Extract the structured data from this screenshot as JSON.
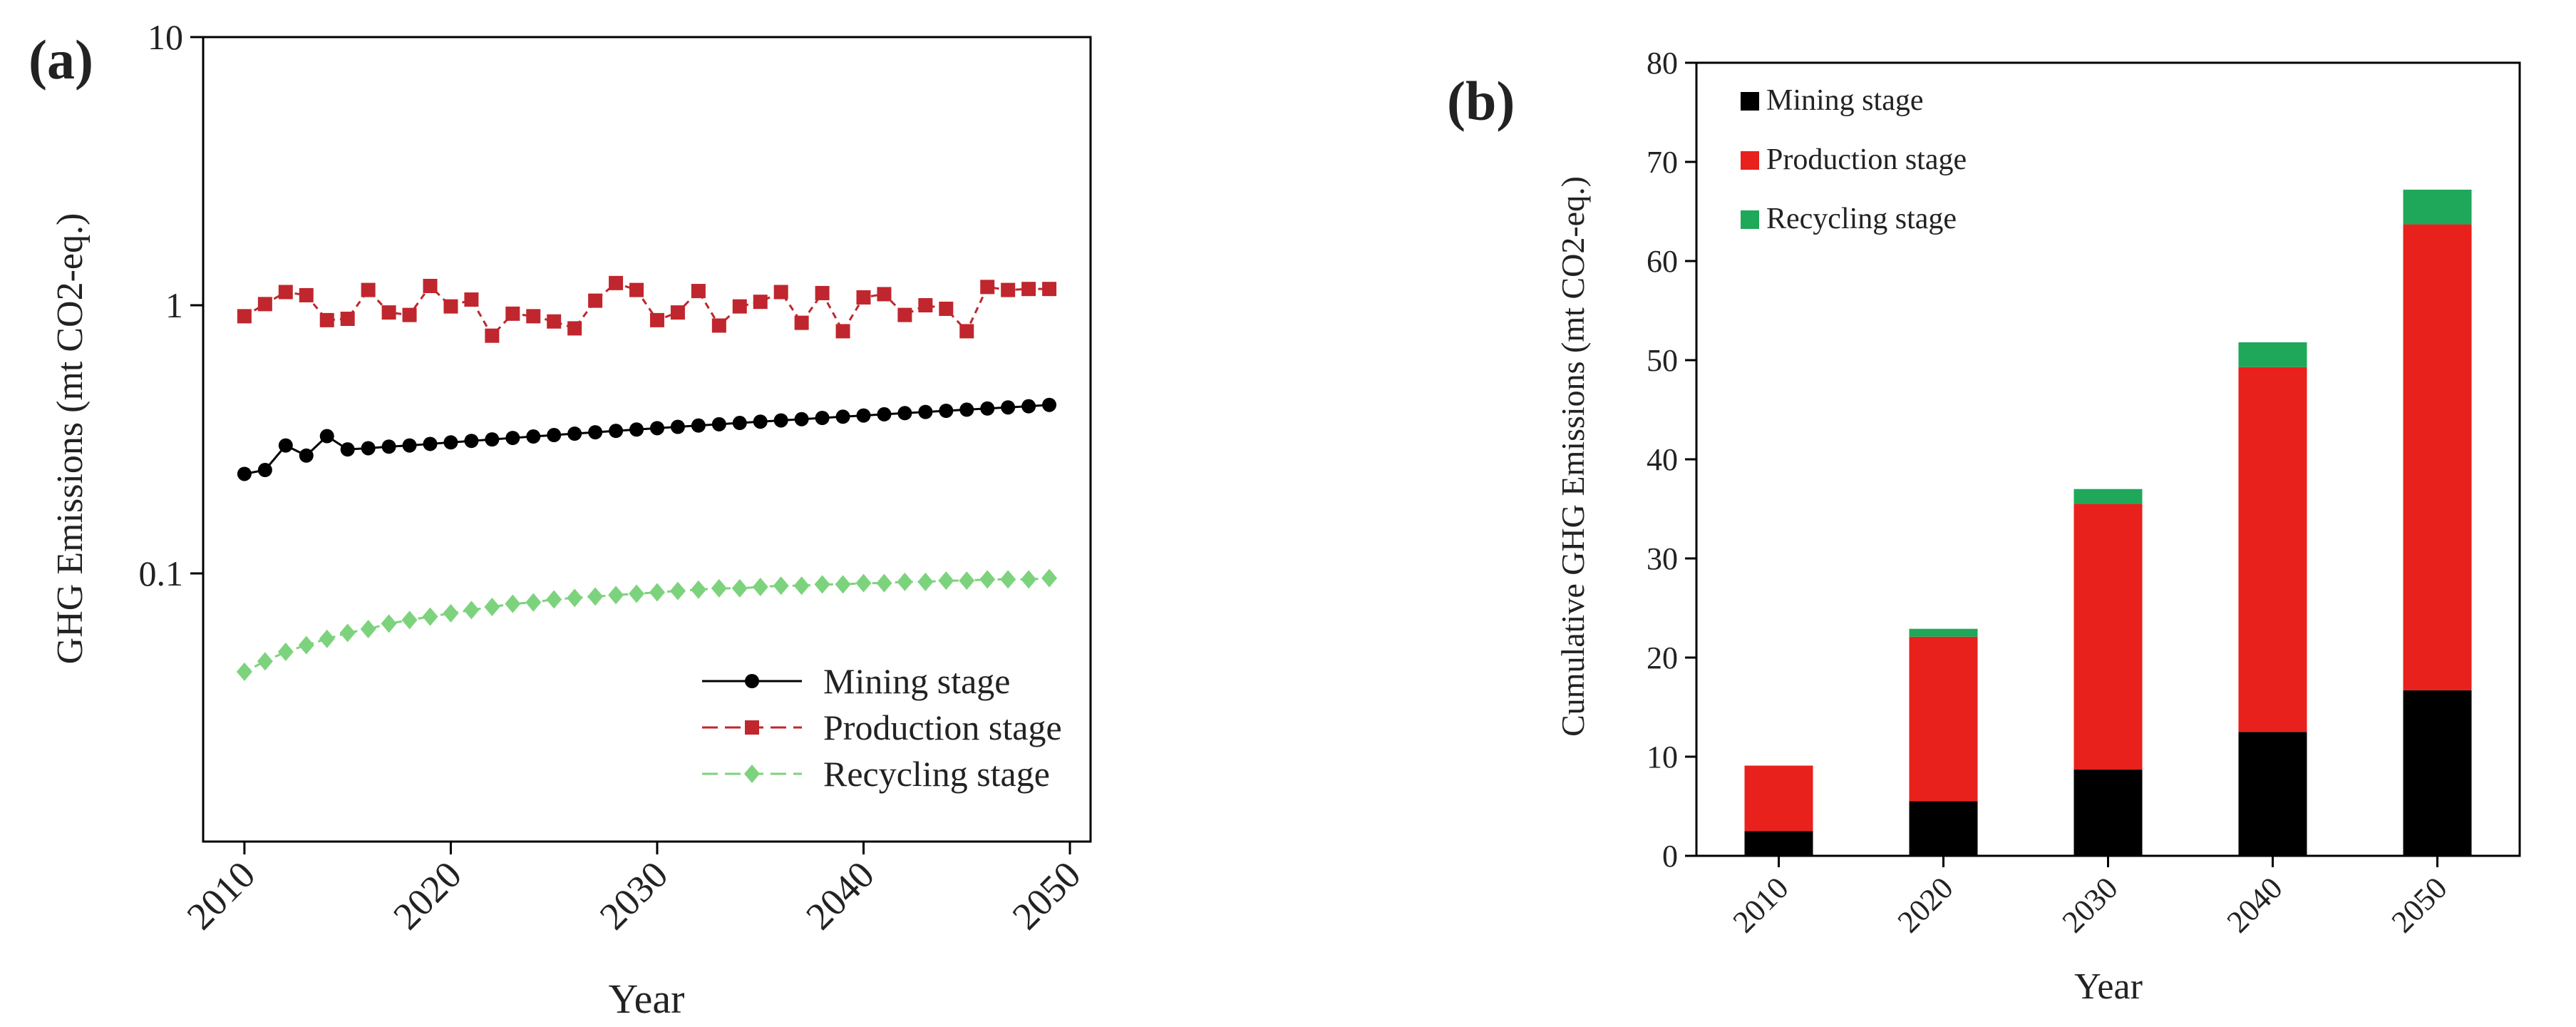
{
  "colors": {
    "mining": "#000000",
    "production": "#e8211c",
    "production_line": "#c0262d",
    "recycling": "#1fa85a",
    "recycling_line": "#7dd37d"
  },
  "chart_data": [
    {
      "panel_label": "(a)",
      "type": "line",
      "xlabel": "Year",
      "ylabel": "GHG Emissions (mt CO2-eq.)",
      "yscale": "log",
      "ylim": [
        0.01,
        10
      ],
      "xlim": [
        2008,
        2051
      ],
      "xticks": [
        2010,
        2020,
        2030,
        2040,
        2050
      ],
      "yticks": [
        0.1,
        1,
        10
      ],
      "ytick_labels": [
        "0.1",
        "1",
        "10"
      ],
      "legend_position": "lower-right",
      "x": [
        2010,
        2011,
        2012,
        2013,
        2014,
        2015,
        2016,
        2017,
        2018,
        2019,
        2020,
        2021,
        2022,
        2023,
        2024,
        2025,
        2026,
        2027,
        2028,
        2029,
        2030,
        2031,
        2032,
        2033,
        2034,
        2035,
        2036,
        2037,
        2038,
        2039,
        2040,
        2041,
        2042,
        2043,
        2044,
        2045,
        2046,
        2047,
        2048,
        2049
      ],
      "series": [
        {
          "name": "Mining stage",
          "marker": "circle",
          "values": [
            0.235,
            0.243,
            0.3,
            0.275,
            0.325,
            0.29,
            0.293,
            0.297,
            0.3,
            0.304,
            0.308,
            0.312,
            0.316,
            0.32,
            0.324,
            0.328,
            0.332,
            0.336,
            0.34,
            0.344,
            0.348,
            0.352,
            0.356,
            0.36,
            0.364,
            0.368,
            0.372,
            0.376,
            0.38,
            0.384,
            0.388,
            0.392,
            0.396,
            0.4,
            0.404,
            0.408,
            0.412,
            0.416,
            0.42,
            0.425
          ]
        },
        {
          "name": "Production stage",
          "marker": "square",
          "values": [
            0.91,
            1.01,
            1.12,
            1.09,
            0.88,
            0.89,
            1.14,
            0.94,
            0.92,
            1.18,
            0.99,
            1.05,
            0.77,
            0.93,
            0.91,
            0.87,
            0.82,
            1.04,
            1.21,
            1.14,
            0.88,
            0.94,
            1.13,
            0.84,
            0.99,
            1.03,
            1.12,
            0.86,
            1.11,
            0.8,
            1.07,
            1.1,
            0.92,
            1.0,
            0.97,
            0.8,
            1.17,
            1.14,
            1.15,
            1.15
          ]
        },
        {
          "name": "Recycling stage",
          "marker": "diamond",
          "values": [
            0.043,
            0.047,
            0.051,
            0.054,
            0.057,
            0.06,
            0.062,
            0.065,
            0.067,
            0.069,
            0.071,
            0.073,
            0.075,
            0.077,
            0.078,
            0.08,
            0.081,
            0.082,
            0.083,
            0.084,
            0.085,
            0.086,
            0.087,
            0.088,
            0.088,
            0.089,
            0.09,
            0.09,
            0.091,
            0.091,
            0.092,
            0.092,
            0.093,
            0.093,
            0.094,
            0.094,
            0.095,
            0.095,
            0.095,
            0.096
          ]
        }
      ]
    },
    {
      "panel_label": "(b)",
      "type": "bar",
      "stacked": true,
      "xlabel": "Year",
      "ylabel": "Cumulative GHG Emissions (mt CO2-eq.)",
      "categories": [
        "2010",
        "2020",
        "2030",
        "2040",
        "2050"
      ],
      "ylim": [
        0,
        80
      ],
      "yticks": [
        0,
        10,
        20,
        30,
        40,
        50,
        60,
        70,
        80
      ],
      "legend_position": "top-left",
      "series": [
        {
          "name": "Mining stage",
          "values": [
            2.5,
            5.5,
            8.7,
            12.5,
            16.7
          ]
        },
        {
          "name": "Production stage",
          "values": [
            6.6,
            16.6,
            26.8,
            36.8,
            47.0
          ]
        },
        {
          "name": "Recycling stage",
          "values": [
            0.0,
            0.8,
            1.5,
            2.5,
            3.5
          ]
        }
      ]
    }
  ]
}
